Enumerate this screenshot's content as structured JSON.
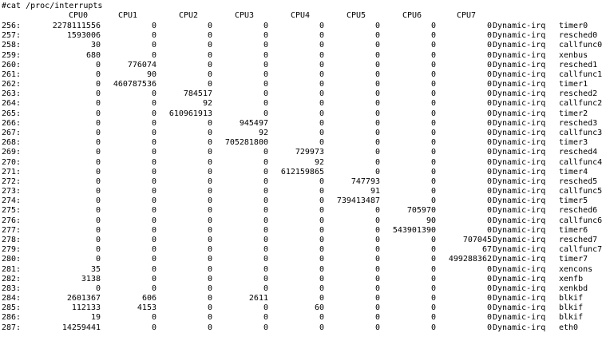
{
  "terminal": {
    "command": "#cat /proc/interrupts",
    "cpu_headers": [
      "CPU0",
      "CPU1",
      "CPU2",
      "CPU3",
      "CPU4",
      "CPU5",
      "CPU6",
      "CPU7"
    ],
    "rows": [
      {
        "irq": "256:",
        "counts": [
          "2278111556",
          "0",
          "0",
          "0",
          "0",
          "0",
          "0",
          "0"
        ],
        "type": "Dynamic-irq",
        "device": "timer0"
      },
      {
        "irq": "257:",
        "counts": [
          "1593006",
          "0",
          "0",
          "0",
          "0",
          "0",
          "0",
          "0"
        ],
        "type": "Dynamic-irq",
        "device": "resched0"
      },
      {
        "irq": "258:",
        "counts": [
          "30",
          "0",
          "0",
          "0",
          "0",
          "0",
          "0",
          "0"
        ],
        "type": "Dynamic-irq",
        "device": "callfunc0"
      },
      {
        "irq": "259:",
        "counts": [
          "680",
          "0",
          "0",
          "0",
          "0",
          "0",
          "0",
          "0"
        ],
        "type": "Dynamic-irq",
        "device": "xenbus"
      },
      {
        "irq": "260:",
        "counts": [
          "0",
          "776074",
          "0",
          "0",
          "0",
          "0",
          "0",
          "0"
        ],
        "type": "Dynamic-irq",
        "device": "resched1"
      },
      {
        "irq": "261:",
        "counts": [
          "0",
          "90",
          "0",
          "0",
          "0",
          "0",
          "0",
          "0"
        ],
        "type": "Dynamic-irq",
        "device": "callfunc1"
      },
      {
        "irq": "262:",
        "counts": [
          "0",
          "460787536",
          "0",
          "0",
          "0",
          "0",
          "0",
          "0"
        ],
        "type": "Dynamic-irq",
        "device": "timer1"
      },
      {
        "irq": "263:",
        "counts": [
          "0",
          "0",
          "784517",
          "0",
          "0",
          "0",
          "0",
          "0"
        ],
        "type": "Dynamic-irq",
        "device": "resched2"
      },
      {
        "irq": "264:",
        "counts": [
          "0",
          "0",
          "92",
          "0",
          "0",
          "0",
          "0",
          "0"
        ],
        "type": "Dynamic-irq",
        "device": "callfunc2"
      },
      {
        "irq": "265:",
        "counts": [
          "0",
          "0",
          "610961913",
          "0",
          "0",
          "0",
          "0",
          "0"
        ],
        "type": "Dynamic-irq",
        "device": "timer2"
      },
      {
        "irq": "266:",
        "counts": [
          "0",
          "0",
          "0",
          "945497",
          "0",
          "0",
          "0",
          "0"
        ],
        "type": "Dynamic-irq",
        "device": "resched3"
      },
      {
        "irq": "267:",
        "counts": [
          "0",
          "0",
          "0",
          "92",
          "0",
          "0",
          "0",
          "0"
        ],
        "type": "Dynamic-irq",
        "device": "callfunc3"
      },
      {
        "irq": "268:",
        "counts": [
          "0",
          "0",
          "0",
          "705281800",
          "0",
          "0",
          "0",
          "0"
        ],
        "type": "Dynamic-irq",
        "device": "timer3"
      },
      {
        "irq": "269:",
        "counts": [
          "0",
          "0",
          "0",
          "0",
          "729973",
          "0",
          "0",
          "0"
        ],
        "type": "Dynamic-irq",
        "device": "resched4"
      },
      {
        "irq": "270:",
        "counts": [
          "0",
          "0",
          "0",
          "0",
          "92",
          "0",
          "0",
          "0"
        ],
        "type": "Dynamic-irq",
        "device": "callfunc4"
      },
      {
        "irq": "271:",
        "counts": [
          "0",
          "0",
          "0",
          "0",
          "612159865",
          "0",
          "0",
          "0"
        ],
        "type": "Dynamic-irq",
        "device": "timer4"
      },
      {
        "irq": "272:",
        "counts": [
          "0",
          "0",
          "0",
          "0",
          "0",
          "747793",
          "0",
          "0"
        ],
        "type": "Dynamic-irq",
        "device": "resched5"
      },
      {
        "irq": "273:",
        "counts": [
          "0",
          "0",
          "0",
          "0",
          "0",
          "91",
          "0",
          "0"
        ],
        "type": "Dynamic-irq",
        "device": "callfunc5"
      },
      {
        "irq": "274:",
        "counts": [
          "0",
          "0",
          "0",
          "0",
          "0",
          "739413487",
          "0",
          "0"
        ],
        "type": "Dynamic-irq",
        "device": "timer5"
      },
      {
        "irq": "275:",
        "counts": [
          "0",
          "0",
          "0",
          "0",
          "0",
          "0",
          "705970",
          "0"
        ],
        "type": "Dynamic-irq",
        "device": "resched6"
      },
      {
        "irq": "276:",
        "counts": [
          "0",
          "0",
          "0",
          "0",
          "0",
          "0",
          "90",
          "0"
        ],
        "type": "Dynamic-irq",
        "device": "callfunc6"
      },
      {
        "irq": "277:",
        "counts": [
          "0",
          "0",
          "0",
          "0",
          "0",
          "0",
          "543901390",
          "0"
        ],
        "type": "Dynamic-irq",
        "device": "timer6"
      },
      {
        "irq": "278:",
        "counts": [
          "0",
          "0",
          "0",
          "0",
          "0",
          "0",
          "0",
          "707045"
        ],
        "type": "Dynamic-irq",
        "device": "resched7"
      },
      {
        "irq": "279:",
        "counts": [
          "0",
          "0",
          "0",
          "0",
          "0",
          "0",
          "0",
          "67"
        ],
        "type": "Dynamic-irq",
        "device": "callfunc7"
      },
      {
        "irq": "280:",
        "counts": [
          "0",
          "0",
          "0",
          "0",
          "0",
          "0",
          "0",
          "499288362"
        ],
        "type": "Dynamic-irq",
        "device": "timer7"
      },
      {
        "irq": "281:",
        "counts": [
          "35",
          "0",
          "0",
          "0",
          "0",
          "0",
          "0",
          "0"
        ],
        "type": "Dynamic-irq",
        "device": "xencons"
      },
      {
        "irq": "282:",
        "counts": [
          "3138",
          "0",
          "0",
          "0",
          "0",
          "0",
          "0",
          "0"
        ],
        "type": "Dynamic-irq",
        "device": "xenfb"
      },
      {
        "irq": "283:",
        "counts": [
          "0",
          "0",
          "0",
          "0",
          "0",
          "0",
          "0",
          "0"
        ],
        "type": "Dynamic-irq",
        "device": "xenkbd"
      },
      {
        "irq": "284:",
        "counts": [
          "2601367",
          "606",
          "0",
          "2611",
          "0",
          "0",
          "0",
          "0"
        ],
        "type": "Dynamic-irq",
        "device": "blkif"
      },
      {
        "irq": "285:",
        "counts": [
          "112133",
          "4153",
          "0",
          "0",
          "60",
          "0",
          "0",
          "0"
        ],
        "type": "Dynamic-irq",
        "device": "blkif"
      },
      {
        "irq": "286:",
        "counts": [
          "19",
          "0",
          "0",
          "0",
          "0",
          "0",
          "0",
          "0"
        ],
        "type": "Dynamic-irq",
        "device": "blkif"
      },
      {
        "irq": "287:",
        "counts": [
          "14259441",
          "0",
          "0",
          "0",
          "0",
          "0",
          "0",
          "0"
        ],
        "type": "Dynamic-irq",
        "device": "eth0"
      }
    ]
  }
}
